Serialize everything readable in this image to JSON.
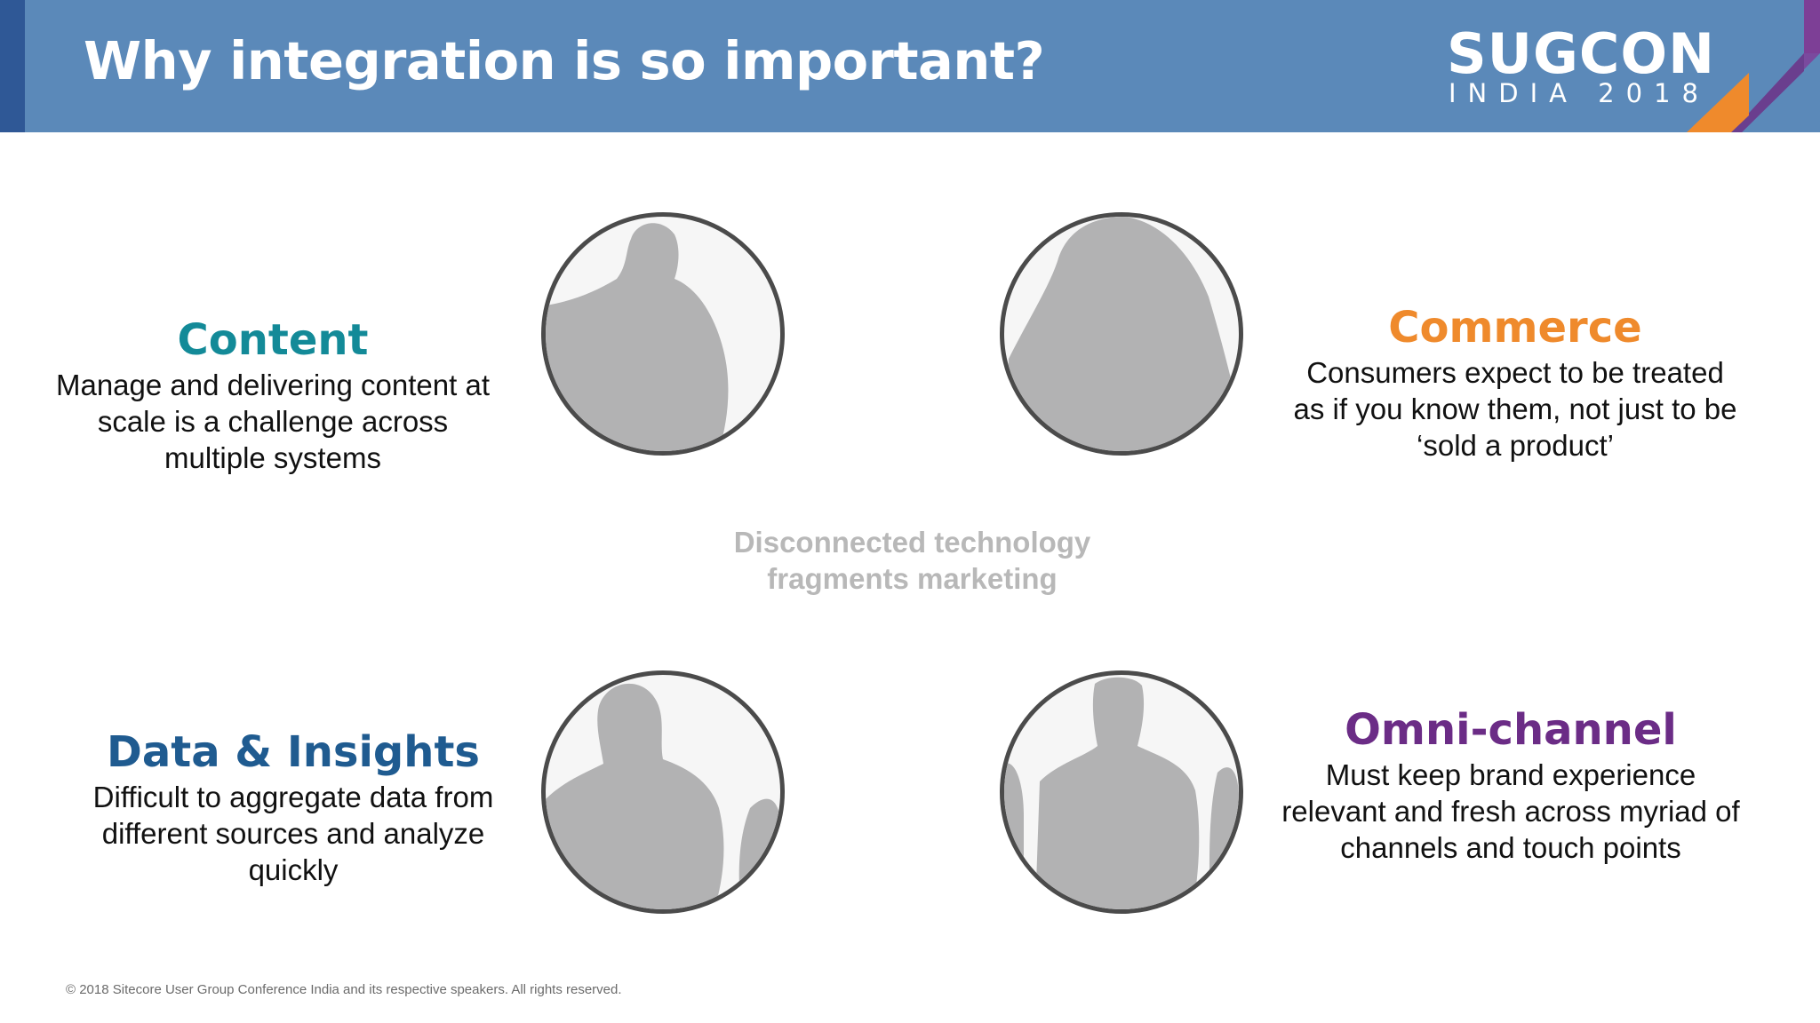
{
  "slide": {
    "title": "Why integration is so important?",
    "logo": {
      "main": "SUGCON",
      "sub": "INDIA 2018"
    },
    "center_text": "Disconnected technology fragments marketing",
    "footer": "© 2018 Sitecore User Group Conference India and its respective speakers.  All rights reserved.",
    "colors": {
      "header": "#5b89b9",
      "header_bar": "#2f5896",
      "content": "#138a98",
      "commerce": "#ef8a2c",
      "data_insights": "#1f5b90",
      "omni_channel": "#6b2c86",
      "silhouette": "#b2b2b3"
    }
  },
  "quadrants": {
    "content": {
      "title": "Content",
      "description": "Manage and delivering content at scale is a challenge across multiple systems"
    },
    "commerce": {
      "title": "Commerce",
      "description": "Consumers expect to be treated as if you know them, not just to be ‘sold a product’"
    },
    "data_insights": {
      "title": "Data & Insights",
      "description": "Difficult to aggregate data from different sources and analyze quickly"
    },
    "omni_channel": {
      "title": "Omni-channel",
      "description": "Must keep brand experience relevant and fresh across myriad of channels and touch points"
    }
  }
}
